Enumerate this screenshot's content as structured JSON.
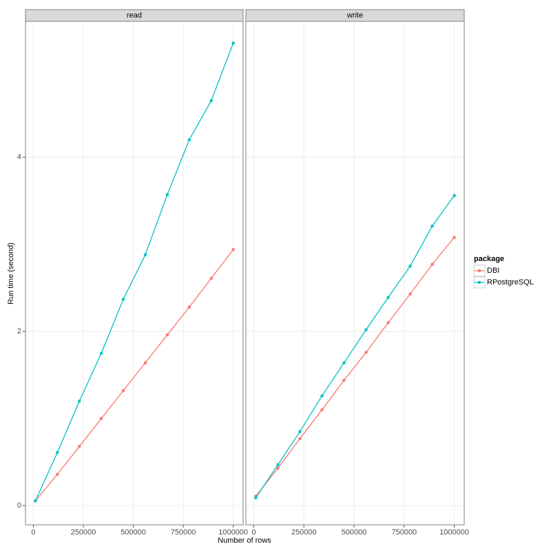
{
  "x_label": "Number of rows",
  "y_label": "Run time (second)",
  "legend_title": "package",
  "chart_data": [
    {
      "type": "line",
      "title": "read",
      "x": [
        10000,
        120000,
        230000,
        340000,
        450000,
        560000,
        670000,
        780000,
        890000,
        1000000
      ],
      "series": [
        {
          "name": "DBI",
          "color": "#F8766D",
          "values": [
            0.055,
            0.36,
            0.68,
            1.0,
            1.32,
            1.64,
            1.96,
            2.28,
            2.61,
            2.94
          ]
        },
        {
          "name": "RPostgreSQL",
          "color": "#00BFC4",
          "values": [
            0.055,
            0.61,
            1.2,
            1.75,
            2.37,
            2.88,
            3.57,
            4.2,
            4.65,
            5.31
          ]
        }
      ],
      "xlim": [
        -39500,
        1049500
      ],
      "ylim": [
        -0.22,
        5.56
      ],
      "xticks": [
        0,
        250000,
        500000,
        750000,
        1000000
      ],
      "yticks": [
        0,
        2,
        4
      ],
      "grid": true
    },
    {
      "type": "line",
      "title": "write",
      "x": [
        10000,
        120000,
        230000,
        340000,
        450000,
        560000,
        670000,
        780000,
        890000,
        1000000
      ],
      "series": [
        {
          "name": "DBI",
          "color": "#F8766D",
          "values": [
            0.11,
            0.43,
            0.77,
            1.1,
            1.44,
            1.76,
            2.1,
            2.43,
            2.77,
            3.08
          ]
        },
        {
          "name": "RPostgreSQL",
          "color": "#00BFC4",
          "values": [
            0.09,
            0.47,
            0.85,
            1.26,
            1.64,
            2.02,
            2.39,
            2.75,
            3.21,
            3.56
          ]
        }
      ],
      "xlim": [
        -39500,
        1049500
      ],
      "ylim": [
        -0.22,
        5.56
      ],
      "xticks": [
        0,
        250000,
        500000,
        750000,
        1000000
      ],
      "yticks": [
        0,
        2,
        4
      ],
      "grid": true
    }
  ]
}
